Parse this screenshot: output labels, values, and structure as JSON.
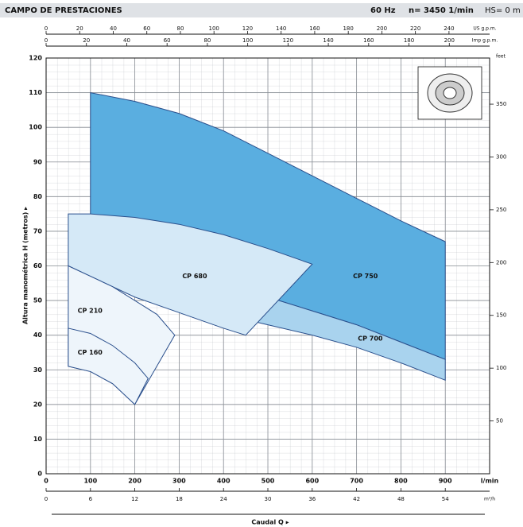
{
  "chart_data": {
    "type": "region",
    "title": "CAMPO DE PRESTACIONES",
    "subtitle": [
      "60 Hz",
      "n= 3450  1/min",
      "HS= 0 m"
    ],
    "xlabel": "Caudal Q  ▸",
    "ylabel": "Altura manométrica H (metros)  ▸",
    "xunit": "l/min",
    "xlim": [
      0,
      1000
    ],
    "xticks": [
      0,
      100,
      200,
      300,
      400,
      500,
      600,
      700,
      800,
      900
    ],
    "ylim": [
      0,
      120
    ],
    "yticks": [
      0,
      10,
      20,
      30,
      40,
      50,
      60,
      70,
      80,
      90,
      100,
      110,
      120
    ],
    "grid": true,
    "top_axes": [
      {
        "label": "US g.p.m.",
        "lim": [
          0,
          264.2
        ],
        "ticks": [
          0,
          20,
          40,
          60,
          80,
          100,
          120,
          140,
          160,
          180,
          200,
          220,
          240
        ]
      },
      {
        "label": "Imp g.p.m.",
        "lim": [
          0,
          220
        ],
        "ticks": [
          0,
          20,
          40,
          60,
          80,
          100,
          120,
          140,
          160,
          180,
          200
        ]
      }
    ],
    "bottom_axis2": {
      "label": "m³/h",
      "lim": [
        0,
        60
      ],
      "ticks": [
        0,
        6,
        12,
        18,
        24,
        30,
        36,
        42,
        48,
        54
      ]
    },
    "y2label": "feet",
    "y2lim": [
      0,
      393.7
    ],
    "y2ticks": [
      50,
      100,
      150,
      200,
      250,
      300,
      350
    ],
    "series": [
      {
        "name": "CP 750",
        "color": "#5aaee0",
        "x": [
          100,
          200,
          300,
          400,
          500,
          600,
          700,
          800,
          900,
          900,
          800,
          700,
          600,
          500,
          400,
          300,
          200,
          100
        ],
        "y": [
          110,
          107.5,
          104,
          99,
          92.5,
          86,
          79.5,
          73,
          67,
          33,
          38,
          43,
          47,
          51,
          54.5,
          57,
          59,
          62
        ]
      },
      {
        "name": "CP 700",
        "color": "#a9d3ee",
        "x": [
          300,
          400,
          500,
          600,
          700,
          800,
          900,
          900,
          800,
          700,
          600,
          500,
          400,
          300
        ],
        "y": [
          57,
          54.5,
          51,
          47,
          43,
          38,
          33,
          27,
          32,
          36.5,
          40,
          43,
          46,
          49
        ]
      },
      {
        "name": "CP 680",
        "color": "#d5e9f7",
        "x": [
          50,
          100,
          200,
          300,
          400,
          500,
          600,
          450,
          400,
          300,
          200,
          100,
          50
        ],
        "y": [
          75,
          75,
          74,
          72,
          69,
          65,
          60.5,
          40,
          42,
          46.5,
          51,
          57,
          60
        ]
      },
      {
        "name": "CP 210",
        "color": "#eef5fb",
        "x": [
          50,
          100,
          150,
          200,
          250,
          290,
          200,
          150,
          100,
          50
        ],
        "y": [
          60,
          57,
          54,
          50,
          46,
          40,
          20,
          26,
          29.5,
          31
        ]
      },
      {
        "name": "CP 160",
        "color": "#eef5fb",
        "x": [
          50,
          100,
          150,
          200,
          230,
          200,
          150,
          100,
          50
        ],
        "y": [
          42,
          40.5,
          37,
          32,
          27.5,
          20,
          26,
          29.5,
          31
        ]
      }
    ]
  }
}
